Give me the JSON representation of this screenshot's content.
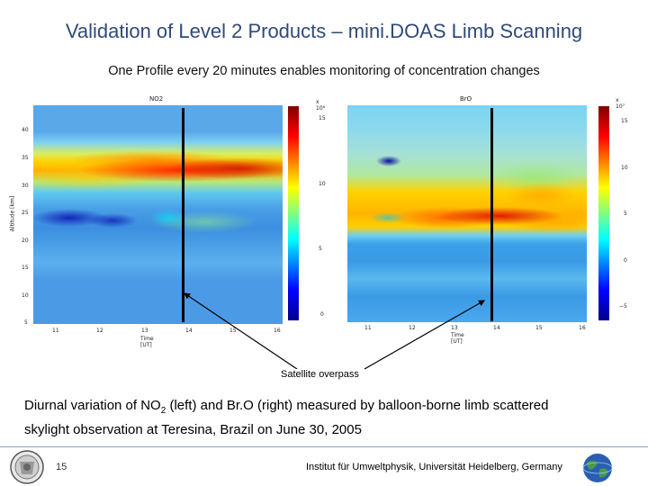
{
  "slide": {
    "title": "Validation of Level 2 Products – mini.DOAS Limb Scanning",
    "subtitle": "One Profile every 20 minutes enables monitoring of concentration changes",
    "callout": "Satellite overpass",
    "caption_line1_prefix": "Diurnal variation of NO",
    "caption_line1_sub": "2",
    "caption_line1_suffix": " (left) and Br.O (right) measured by balloon-borne limb scattered",
    "caption_line2": "skylight observation at Teresina, Brazil on June 30, 2005",
    "page_number": "15",
    "institute": "Institut für Umweltphysik, Universität Heidelberg, Germany"
  },
  "chart_data": [
    {
      "type": "heatmap",
      "title": "NO2",
      "xlabel": "Time [UT]",
      "ylabel": "Altitude [km]",
      "x_ticks": [
        "11",
        "12",
        "13",
        "14",
        "15",
        "16"
      ],
      "y_ticks": [
        "40",
        "35",
        "30",
        "25",
        "20",
        "15",
        "10",
        "5"
      ],
      "colorbar_exponent": "x 10⁸",
      "colorbar_ticks": [
        "15",
        "10",
        "5",
        "0"
      ],
      "colormap": [
        "#00008f",
        "#0000ff",
        "#00ffff",
        "#ffff00",
        "#ff0000",
        "#800000"
      ]
    },
    {
      "type": "heatmap",
      "title": "BrO",
      "xlabel": "Time [UT]",
      "ylabel": "",
      "x_ticks": [
        "11",
        "12",
        "13",
        "14",
        "15",
        "16"
      ],
      "y_ticks": [],
      "colorbar_exponent": "x 10⁷",
      "colorbar_ticks": [
        "15",
        "10",
        "5",
        "0",
        "−5"
      ],
      "colormap": [
        "#00008f",
        "#0000ff",
        "#00ffff",
        "#ffff00",
        "#ff0000",
        "#800000"
      ]
    }
  ]
}
